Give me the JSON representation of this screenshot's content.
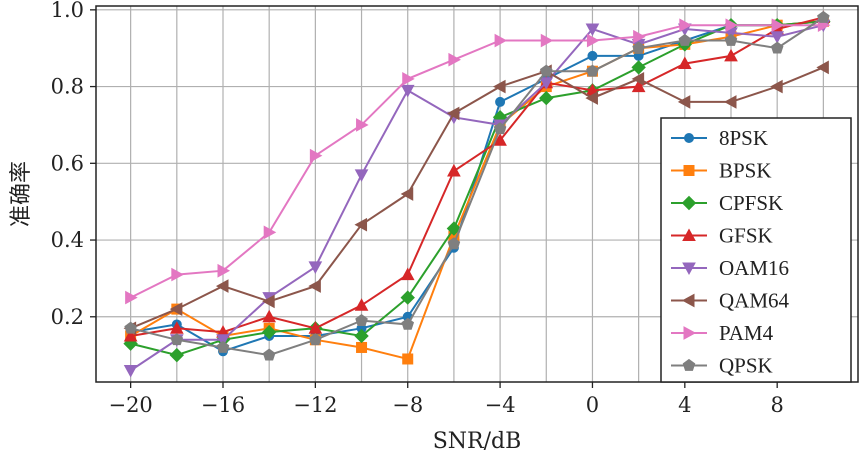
{
  "chart_data": {
    "type": "line",
    "xlabel": "SNR/dB",
    "ylabel": "准确率",
    "xlim": [
      -21.5,
      11.5
    ],
    "ylim": [
      0.03,
      1.01
    ],
    "xticks": [
      -20,
      -16,
      -12,
      -8,
      -4,
      0,
      4,
      8
    ],
    "xtick_labels": [
      "−20",
      "−16",
      "−12",
      "−8",
      "−4",
      "0",
      "4",
      "8"
    ],
    "yticks": [
      0.2,
      0.4,
      0.6,
      0.8,
      1.0
    ],
    "ytick_labels": [
      "0.2",
      "0.4",
      "0.6",
      "0.8",
      "1.0"
    ],
    "grid": true,
    "legend_position": "lower-right",
    "x": [
      -20,
      -18,
      -16,
      -14,
      -12,
      -10,
      -8,
      -6,
      -4,
      -2,
      0,
      2,
      4,
      6,
      8,
      10
    ],
    "series": [
      {
        "name": "8PSK",
        "color": "#1f77b4",
        "marker": "circle",
        "values": [
          0.16,
          0.18,
          0.11,
          0.15,
          0.15,
          0.17,
          0.2,
          0.38,
          0.76,
          0.82,
          0.88,
          0.88,
          0.92,
          0.96,
          0.96,
          0.97
        ]
      },
      {
        "name": "BPSK",
        "color": "#ff7f0e",
        "marker": "square",
        "values": [
          0.15,
          0.22,
          0.15,
          0.17,
          0.14,
          0.12,
          0.09,
          0.41,
          0.7,
          0.8,
          0.84,
          0.9,
          0.91,
          0.93,
          0.96,
          0.97
        ]
      },
      {
        "name": "CPFSK",
        "color": "#2ca02c",
        "marker": "diamond",
        "values": [
          0.13,
          0.1,
          0.14,
          0.16,
          0.17,
          0.15,
          0.25,
          0.43,
          0.72,
          0.77,
          0.79,
          0.85,
          0.91,
          0.96,
          0.96,
          0.97
        ]
      },
      {
        "name": "GFSK",
        "color": "#d62728",
        "marker": "triangle-up",
        "values": [
          0.15,
          0.17,
          0.16,
          0.2,
          0.17,
          0.23,
          0.31,
          0.58,
          0.66,
          0.81,
          0.79,
          0.8,
          0.86,
          0.88,
          0.95,
          0.98
        ]
      },
      {
        "name": "OAM16",
        "color": "#9467bd",
        "marker": "triangle-down",
        "values": [
          0.06,
          0.14,
          0.14,
          0.25,
          0.33,
          0.57,
          0.79,
          0.72,
          0.7,
          0.81,
          0.95,
          0.91,
          0.95,
          0.94,
          0.93,
          0.96
        ]
      },
      {
        "name": "QAM64",
        "color": "#8c564b",
        "marker": "triangle-left",
        "values": [
          0.17,
          0.22,
          0.28,
          0.24,
          0.28,
          0.44,
          0.52,
          0.73,
          0.8,
          0.84,
          0.77,
          0.82,
          0.76,
          0.76,
          0.8,
          0.85
        ]
      },
      {
        "name": "PAM4",
        "color": "#e377c2",
        "marker": "triangle-right",
        "values": [
          0.25,
          0.31,
          0.32,
          0.42,
          0.62,
          0.7,
          0.82,
          0.87,
          0.92,
          0.92,
          0.92,
          0.93,
          0.96,
          0.96,
          0.96,
          0.96
        ]
      },
      {
        "name": "QPSK",
        "color": "#7f7f7f",
        "marker": "pentagon",
        "values": [
          0.17,
          0.14,
          0.12,
          0.1,
          0.14,
          0.19,
          0.18,
          0.39,
          0.69,
          0.84,
          0.84,
          0.9,
          0.92,
          0.92,
          0.9,
          0.98
        ]
      }
    ]
  }
}
